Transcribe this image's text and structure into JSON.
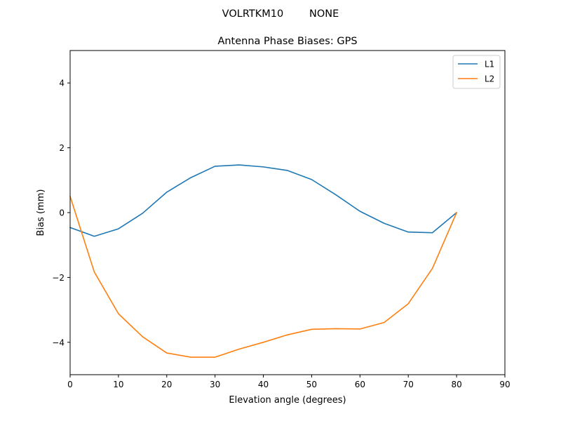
{
  "chart_data": {
    "type": "line",
    "suptitle": "VOLRTKM10        NONE",
    "title": "Antenna Phase Biases: GPS",
    "xlabel": "Elevation angle (degrees)",
    "ylabel": "Bias (mm)",
    "xlim": [
      0,
      90
    ],
    "ylim": [
      -5,
      5
    ],
    "xticks": [
      0,
      10,
      20,
      30,
      40,
      50,
      60,
      70,
      80,
      90
    ],
    "yticks": [
      -4,
      -2,
      0,
      2,
      4
    ],
    "grid": false,
    "legend_position": "top-right",
    "x": [
      0,
      5,
      10,
      15,
      20,
      25,
      30,
      35,
      40,
      45,
      50,
      55,
      60,
      65,
      70,
      75,
      80
    ],
    "series": [
      {
        "name": "L1",
        "color": "#1f77b4",
        "values": [
          -0.46,
          -0.73,
          -0.5,
          -0.02,
          0.63,
          1.08,
          1.43,
          1.47,
          1.41,
          1.3,
          1.02,
          0.55,
          0.04,
          -0.33,
          -0.6,
          -0.62,
          0.0
        ]
      },
      {
        "name": "L2",
        "color": "#ff7f0e",
        "values": [
          0.5,
          -1.83,
          -3.12,
          -3.83,
          -4.33,
          -4.46,
          -4.46,
          -4.21,
          -4.0,
          -3.77,
          -3.6,
          -3.58,
          -3.59,
          -3.39,
          -2.81,
          -1.72,
          0.0
        ]
      }
    ]
  }
}
